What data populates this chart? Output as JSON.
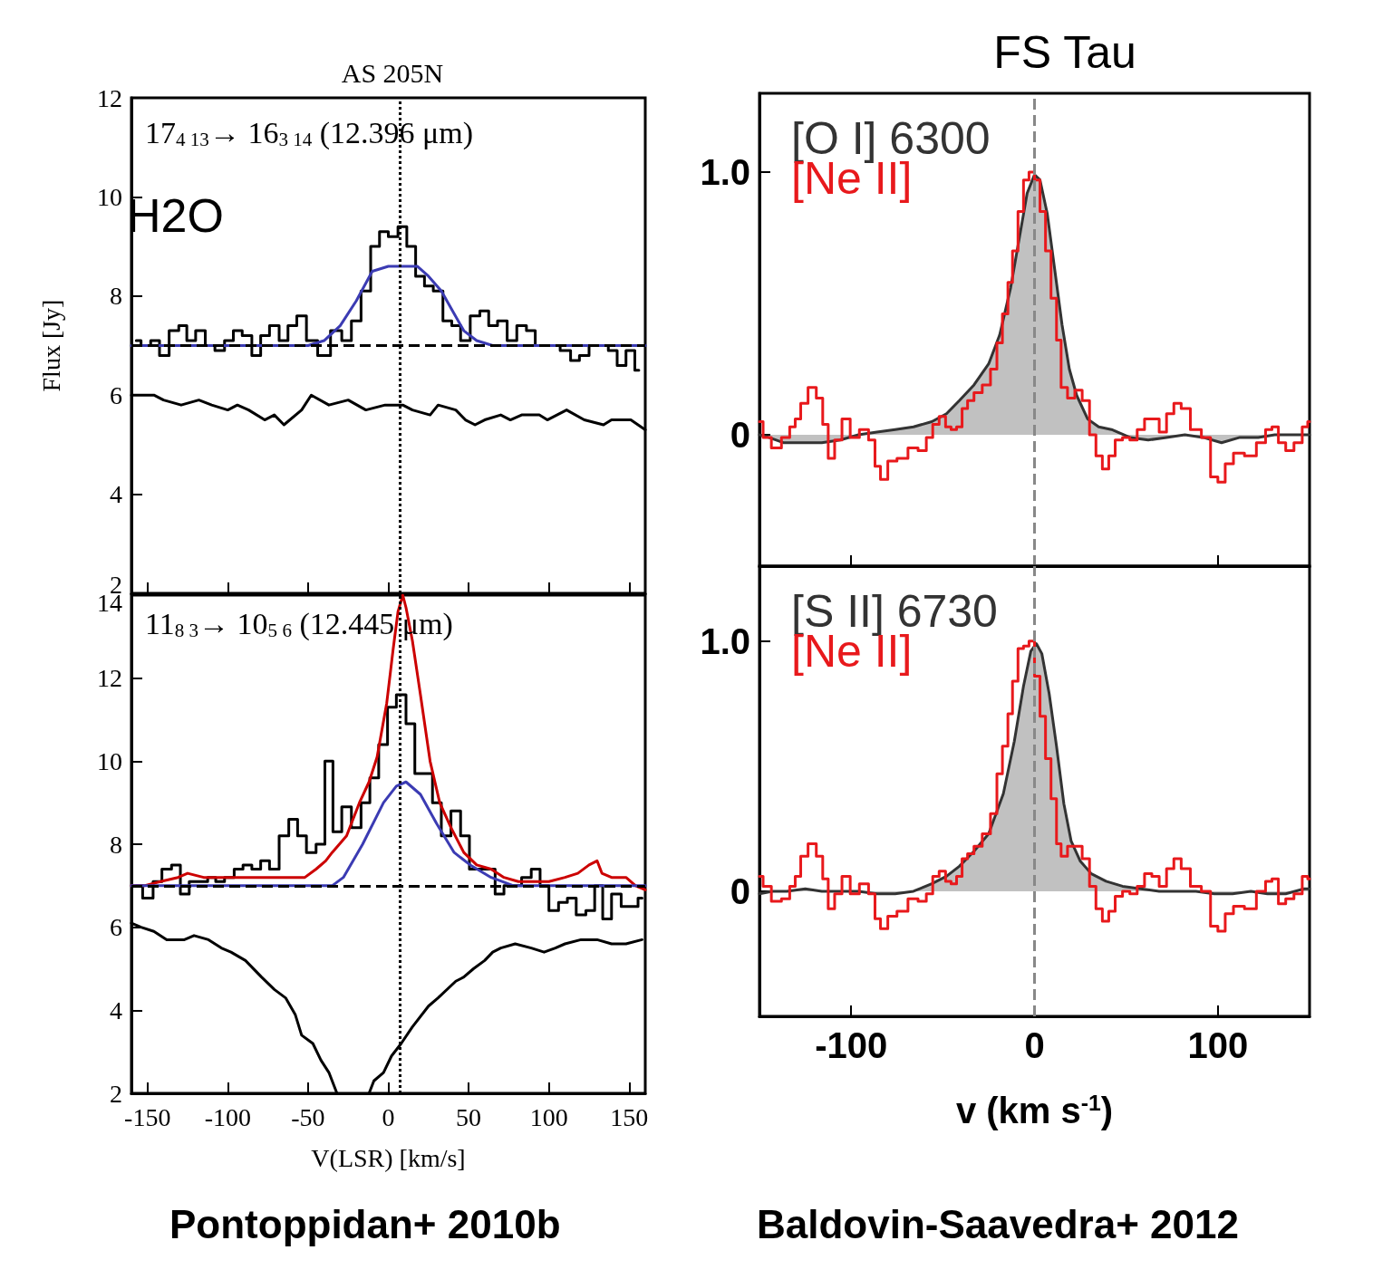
{
  "chart_data": [
    {
      "type": "step",
      "title": "AS 205N",
      "ylabel": "Flux [Jy]",
      "xlim": [
        -160,
        160
      ],
      "xticks": [
        -150,
        -100,
        -50,
        0,
        50,
        100,
        150
      ],
      "ylim": [
        2,
        12
      ],
      "yticks": [
        2,
        4,
        6,
        8,
        10,
        12
      ],
      "tick_labels": "y",
      "grid": false,
      "legend": false,
      "marker": "none",
      "annotations": [
        "17$_{4 13}$→ 16$_{3 14}$ (12.396 μm)",
        "H2O"
      ],
      "ref_lines": [
        {
          "axis": "x",
          "value": 7,
          "color": "#000000",
          "line_style": "dotted"
        },
        {
          "axis": "y",
          "value": 7,
          "color": "#000000",
          "line_style": "dashed"
        }
      ],
      "series": [
        {
          "color": "#000000",
          "x": [
            -157,
            -151,
            -145,
            -140,
            -133,
            -128,
            -123,
            -117,
            -111,
            -105,
            -99,
            -94,
            -88,
            -82,
            -77,
            -71,
            -65,
            -60,
            -54,
            -48,
            -40,
            -32,
            -26,
            -20,
            -14,
            -8,
            -3,
            3,
            9,
            14,
            20,
            25,
            31,
            37,
            42,
            48,
            54,
            60,
            65,
            71,
            77,
            83,
            89,
            94,
            103,
            111,
            116,
            122,
            128,
            134,
            140,
            145,
            151,
            156
          ],
          "values": [
            7.1,
            7.0,
            7.1,
            6.8,
            7.3,
            7.4,
            7.1,
            7.3,
            7.0,
            6.9,
            7.1,
            7.3,
            7.2,
            6.8,
            7.2,
            7.4,
            7.1,
            7.4,
            7.6,
            7.1,
            6.8,
            7.3,
            7.1,
            7.5,
            8.1,
            9.0,
            9.3,
            9.2,
            9.4,
            9.0,
            8.4,
            8.2,
            8.1,
            7.5,
            7.4,
            7.1,
            7.6,
            7.7,
            7.4,
            7.5,
            7.1,
            7.4,
            7.3,
            7.0,
            7.0,
            6.9,
            6.7,
            6.8,
            7.0,
            7.0,
            6.9,
            6.6,
            6.9,
            6.5
          ]
        },
        {
          "type": "line",
          "color": "#3b3bb3",
          "x": [
            -160,
            -50,
            -40,
            -30,
            -20,
            -10,
            0,
            10,
            18,
            25,
            33,
            40,
            47,
            55,
            65,
            160
          ],
          "values": [
            7.0,
            7.0,
            7.1,
            7.4,
            7.9,
            8.5,
            8.6,
            8.6,
            8.6,
            8.4,
            8.1,
            7.7,
            7.3,
            7.1,
            7.0,
            7.0
          ]
        },
        {
          "type": "line",
          "color": "#000000",
          "x": [
            -160,
            -146,
            -140,
            -129,
            -118,
            -110,
            -100,
            -94,
            -87,
            -77,
            -71,
            -65,
            -54,
            -48,
            -37,
            -25,
            -14,
            -2,
            9,
            15,
            26,
            31,
            42,
            48,
            54,
            60,
            70,
            76,
            83,
            94,
            99,
            111,
            122,
            134,
            139,
            151,
            160
          ],
          "values": [
            6.0,
            6.0,
            5.9,
            5.8,
            5.9,
            5.8,
            5.7,
            5.8,
            5.7,
            5.5,
            5.6,
            5.4,
            5.7,
            6.0,
            5.8,
            5.9,
            5.7,
            5.8,
            5.8,
            5.7,
            5.6,
            5.8,
            5.7,
            5.5,
            5.4,
            5.5,
            5.6,
            5.5,
            5.6,
            5.6,
            5.5,
            5.7,
            5.5,
            5.4,
            5.5,
            5.5,
            5.3
          ]
        }
      ]
    },
    {
      "type": "step",
      "xlabel": "V(LSR) [km/s]",
      "xlim": [
        -160,
        160
      ],
      "xticks": [
        -150,
        -100,
        -50,
        0,
        50,
        100,
        150
      ],
      "ylim": [
        2,
        14
      ],
      "yticks": [
        2,
        4,
        6,
        8,
        10,
        12,
        14
      ],
      "grid": false,
      "legend": false,
      "marker": "none",
      "annotations": [
        "11$_{8 3}$→ 10$_{5 6}$ (12.445 μm)",
        "Pontoppidan+ 2010b"
      ],
      "ref_lines": [
        {
          "axis": "x",
          "value": 7,
          "color": "#000000",
          "line_style": "dotted"
        },
        {
          "axis": "y",
          "value": 7,
          "color": "#000000",
          "line_style": "dashed"
        }
      ],
      "series": [
        {
          "color": "#000000",
          "x": [
            -157,
            -149,
            -144,
            -138,
            -132,
            -127,
            -121,
            -115,
            -110,
            -105,
            -99,
            -93,
            -88,
            -82,
            -77,
            -71,
            -65,
            -59,
            -54,
            -48,
            -42,
            -37,
            -32,
            -26,
            -20,
            -14,
            -9,
            -3,
            2,
            8,
            14,
            19,
            25,
            30,
            36,
            42,
            48,
            53,
            59,
            64,
            69,
            75,
            80,
            86,
            92,
            97,
            103,
            109,
            114,
            120,
            126,
            131,
            136,
            142,
            148,
            153,
            158
          ],
          "values": [
            7.0,
            6.7,
            7.1,
            7.4,
            7.5,
            6.8,
            7.1,
            7.1,
            7.2,
            7.1,
            7.2,
            7.4,
            7.5,
            7.4,
            7.6,
            7.4,
            8.2,
            8.6,
            8.2,
            7.8,
            8.0,
            10.0,
            8.3,
            8.9,
            8.4,
            9.0,
            9.6,
            10.4,
            11.3,
            11.6,
            10.9,
            9.7,
            9.7,
            9.0,
            8.2,
            8.8,
            8.2,
            7.4,
            7.4,
            7.4,
            6.8,
            7.0,
            7.0,
            7.2,
            7.4,
            7.0,
            6.4,
            6.6,
            6.7,
            6.3,
            6.4,
            7.0,
            6.2,
            6.8,
            6.5,
            6.5,
            6.7
          ]
        },
        {
          "type": "line",
          "color": "#cc0000",
          "x": [
            -160,
            -152,
            -142,
            -131,
            -125,
            -115,
            -104,
            -94,
            -83,
            -73,
            -62,
            -52,
            -45,
            -39,
            -35,
            -26,
            -18,
            -12,
            -7,
            -1,
            3,
            6,
            9,
            11,
            15,
            20,
            26,
            32,
            39,
            47,
            55,
            64,
            72,
            81,
            89,
            100,
            110,
            118,
            125,
            130,
            133,
            139,
            148,
            154,
            160
          ],
          "values": [
            7.0,
            7.0,
            7.1,
            7.2,
            7.3,
            7.2,
            7.2,
            7.2,
            7.2,
            7.2,
            7.2,
            7.2,
            7.4,
            7.6,
            7.8,
            8.2,
            9.0,
            9.5,
            10.1,
            11.4,
            12.7,
            13.6,
            14.0,
            13.7,
            12.9,
            11.6,
            10.0,
            9.0,
            8.4,
            7.8,
            7.5,
            7.4,
            7.2,
            7.1,
            7.1,
            7.1,
            7.2,
            7.3,
            7.5,
            7.6,
            7.3,
            7.2,
            7.2,
            7.0,
            6.9
          ]
        },
        {
          "type": "line",
          "color": "#3b3bb3",
          "x": [
            -160,
            -40,
            -35,
            -28,
            -16,
            -3,
            5,
            11,
            20,
            30,
            41,
            51,
            64,
            78,
            160
          ],
          "values": [
            7.0,
            7.0,
            7.0,
            7.2,
            8.0,
            9.0,
            9.4,
            9.5,
            9.2,
            8.5,
            7.8,
            7.5,
            7.2,
            7.0,
            7.0
          ]
        },
        {
          "type": "line",
          "color": "#000000",
          "x": [
            -160,
            -154,
            -146,
            -138,
            -127,
            -121,
            -112,
            -104,
            -98,
            -89,
            -79,
            -71,
            -64,
            -58,
            -54,
            -47,
            -42,
            -37,
            -32,
            -22,
            -12,
            -9,
            -3,
            2,
            8,
            15,
            25,
            31,
            42,
            47,
            53,
            60,
            65,
            70,
            79,
            89,
            97,
            104,
            110,
            120,
            130,
            139,
            148,
            158
          ],
          "values": [
            6.1,
            6.0,
            5.9,
            5.7,
            5.7,
            5.8,
            5.7,
            5.5,
            5.4,
            5.2,
            4.8,
            4.5,
            4.3,
            3.9,
            3.4,
            3.2,
            2.8,
            2.5,
            2.0,
            null,
            2.0,
            2.3,
            2.5,
            2.9,
            3.2,
            3.6,
            4.1,
            4.3,
            4.7,
            4.8,
            5.0,
            5.2,
            5.4,
            5.5,
            5.6,
            5.5,
            5.4,
            5.5,
            5.6,
            5.7,
            5.7,
            5.6,
            5.6,
            5.7
          ]
        }
      ]
    },
    {
      "type": "step",
      "title": "FS Tau",
      "xlim": [
        -150,
        150
      ],
      "xticks": [
        -100,
        0,
        100
      ],
      "ylim": [
        -0.5,
        1.3
      ],
      "yticks": [
        0,
        {
          "value": 1,
          "label": "1.0"
        }
      ],
      "tick_labels": "y",
      "grid": false,
      "legend": "top left",
      "marker": "none",
      "ref_lines": [
        {
          "axis": "x",
          "value": 0,
          "color": "#888888",
          "line_style": "dashed"
        }
      ],
      "series": [
        {
          "type": "area",
          "name": "[O I] 6300",
          "color": "#333333",
          "x": [
            -150,
            -145,
            -137,
            -131,
            -124,
            -116,
            -106,
            -96,
            -86,
            -76,
            -66,
            -56,
            -48,
            -41,
            -33,
            -25,
            -19,
            -13,
            -8,
            -4,
            0,
            3,
            7,
            11,
            15,
            19,
            23,
            29,
            35,
            42,
            52,
            62,
            72,
            82,
            92,
            102,
            112,
            122,
            131,
            141,
            150
          ],
          "values": [
            0,
            -0.01,
            -0.03,
            -0.03,
            -0.03,
            -0.03,
            -0.02,
            0,
            0.01,
            0.02,
            0.03,
            0.05,
            0.08,
            0.13,
            0.19,
            0.27,
            0.38,
            0.56,
            0.76,
            0.92,
            0.99,
            0.97,
            0.84,
            0.63,
            0.42,
            0.25,
            0.15,
            0.06,
            0.03,
            0.02,
            -0.01,
            -0.02,
            -0.01,
            0,
            -0.01,
            -0.03,
            -0.01,
            -0.01,
            0,
            0,
            0
          ]
        },
        {
          "name": "[Ne II]",
          "color": "#e8191c",
          "x": [
            -150,
            -146,
            -141,
            -135,
            -132,
            -129,
            -126,
            -121,
            -117,
            -114,
            -111,
            -107,
            -103,
            -98,
            -93,
            -88,
            -86,
            -82,
            -78,
            -72,
            -66,
            -61,
            -57,
            -54,
            -50,
            -47,
            -44,
            -41,
            -38,
            -35,
            -31,
            -26,
            -22,
            -19,
            -16,
            -13,
            -11,
            -7,
            -5,
            -1,
            1,
            5,
            7,
            11,
            13,
            16,
            20,
            24,
            28,
            32,
            35,
            39,
            42,
            46,
            50,
            54,
            58,
            62,
            66,
            70,
            74,
            78,
            82,
            88,
            94,
            98,
            102,
            106,
            111,
            118,
            124,
            128,
            131,
            135,
            139,
            144,
            148,
            150
          ],
          "values": [
            0.05,
            -0.01,
            -0.05,
            -0.01,
            0.03,
            0.06,
            0.12,
            0.18,
            0.14,
            0.04,
            -0.09,
            -0.02,
            0.06,
            -0.01,
            0.02,
            -0.02,
            -0.12,
            -0.17,
            -0.1,
            -0.09,
            -0.05,
            -0.06,
            -0.01,
            0.04,
            0.07,
            0.03,
            0.02,
            0.03,
            0.1,
            0.13,
            0.16,
            0.19,
            0.25,
            0.35,
            0.46,
            0.58,
            0.7,
            0.85,
            0.97,
            1.0,
            0.97,
            0.85,
            0.7,
            0.52,
            0.36,
            0.18,
            0.14,
            0.17,
            0.13,
            0,
            -0.08,
            -0.13,
            -0.08,
            -0.02,
            -0.01,
            -0.02,
            0.02,
            0.06,
            0.06,
            0.01,
            0.08,
            0.12,
            0.1,
            0.02,
            -0.01,
            -0.16,
            -0.18,
            -0.11,
            -0.07,
            -0.08,
            -0.03,
            0.02,
            0.03,
            -0.03,
            -0.06,
            -0.03,
            0.03,
            0.05
          ]
        }
      ]
    },
    {
      "type": "step",
      "xlabel": "v (km s$^{-1}$)",
      "xlim": [
        -150,
        150
      ],
      "xticks": [
        -100,
        0,
        100
      ],
      "ylim": [
        -0.5,
        1.3
      ],
      "yticks": [
        0,
        {
          "value": 1,
          "label": "1.0"
        }
      ],
      "grid": false,
      "legend": "top left",
      "marker": "none",
      "annotations": [
        "Baldovin-Saavedra+ 2012"
      ],
      "ref_lines": [
        {
          "axis": "x",
          "value": 0,
          "color": "#888888",
          "line_style": "dashed"
        }
      ],
      "series": [
        {
          "type": "area",
          "name": "[S II] 6730",
          "color": "#333333",
          "x": [
            -150,
            -143,
            -135,
            -125,
            -116,
            -106,
            -96,
            -86,
            -76,
            -66,
            -56,
            -48,
            -41,
            -33,
            -25,
            -17,
            -11,
            -6,
            -2,
            1,
            4,
            8,
            12,
            16,
            20,
            25,
            31,
            39,
            48,
            58,
            68,
            78,
            88,
            98,
            108,
            118,
            127,
            137,
            147,
            150
          ],
          "values": [
            -0.01,
            0,
            0,
            0.01,
            0,
            0,
            0,
            -0.01,
            -0.01,
            0,
            0.03,
            0.06,
            0.1,
            0.16,
            0.23,
            0.39,
            0.6,
            0.82,
            0.96,
            0.99,
            0.95,
            0.79,
            0.58,
            0.35,
            0.2,
            0.12,
            0.07,
            0.04,
            0.02,
            0.01,
            0,
            0,
            0,
            -0.01,
            -0.01,
            0,
            -0.01,
            -0.01,
            0.01,
            0.01
          ]
        },
        {
          "name": "[Ne II]",
          "color": "#e8191c",
          "x": [
            -150,
            -146,
            -141,
            -135,
            -132,
            -129,
            -126,
            -121,
            -117,
            -114,
            -111,
            -107,
            -103,
            -98,
            -93,
            -88,
            -86,
            -82,
            -78,
            -72,
            -66,
            -61,
            -57,
            -54,
            -50,
            -47,
            -44,
            -41,
            -38,
            -35,
            -31,
            -26,
            -22,
            -19,
            -16,
            -13,
            -11,
            -7,
            -5,
            -1,
            1,
            5,
            7,
            11,
            13,
            16,
            20,
            24,
            28,
            32,
            35,
            39,
            42,
            46,
            50,
            54,
            58,
            62,
            66,
            70,
            74,
            78,
            82,
            88,
            94,
            98,
            102,
            106,
            111,
            118,
            124,
            128,
            131,
            135,
            139,
            144,
            148,
            150
          ],
          "values": [
            0.06,
            0.02,
            -0.04,
            -0.03,
            0.02,
            0.06,
            0.14,
            0.19,
            0.14,
            0.05,
            -0.07,
            -0.01,
            0.06,
            -0.01,
            0.03,
            -0.01,
            -0.11,
            -0.15,
            -0.1,
            -0.08,
            -0.03,
            -0.04,
            -0.01,
            0.06,
            0.08,
            0.04,
            0.03,
            0.06,
            0.13,
            0.15,
            0.18,
            0.23,
            0.31,
            0.47,
            0.58,
            0.71,
            0.84,
            0.97,
            0.98,
            1.0,
            0.86,
            0.7,
            0.53,
            0.37,
            0.19,
            0.14,
            0.18,
            0.18,
            0.13,
            0.02,
            -0.07,
            -0.12,
            -0.08,
            -0.02,
            0,
            -0.01,
            0.02,
            0.07,
            0.06,
            0.02,
            0.09,
            0.13,
            0.09,
            0.02,
            0,
            -0.14,
            -0.16,
            -0.09,
            -0.06,
            -0.07,
            0,
            0.04,
            0.05,
            -0.05,
            -0.03,
            -0.01,
            0.06,
            0.05
          ]
        }
      ]
    }
  ]
}
